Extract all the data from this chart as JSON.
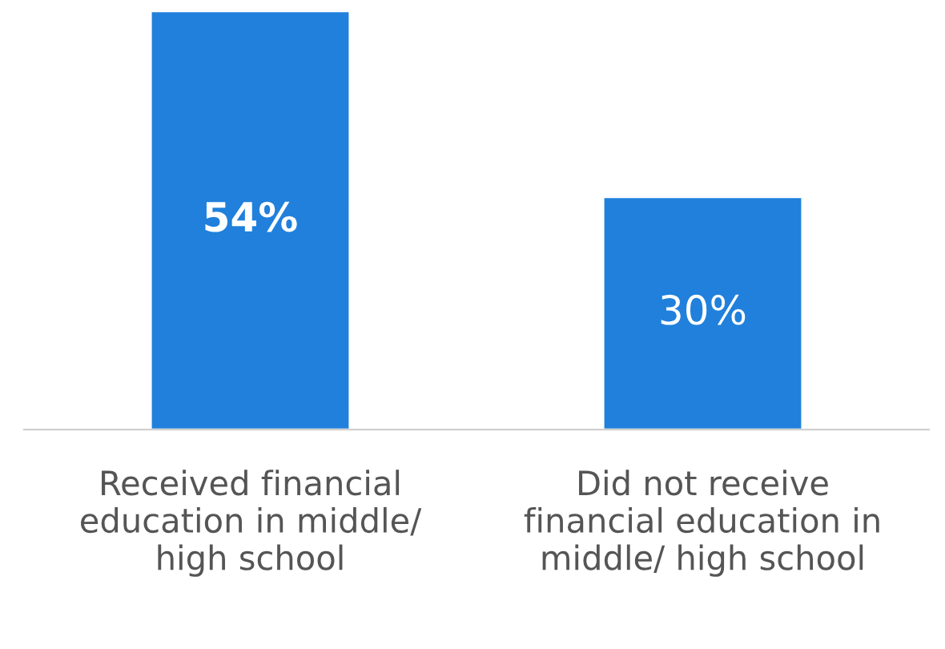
{
  "chart_data": {
    "type": "bar",
    "categories": [
      "Received financial education in middle/ high school",
      "Did not receive financial education in middle/ high school"
    ],
    "values": [
      54,
      30
    ],
    "value_labels": [
      "54%",
      "30%"
    ],
    "color": "#2080dc"
  }
}
